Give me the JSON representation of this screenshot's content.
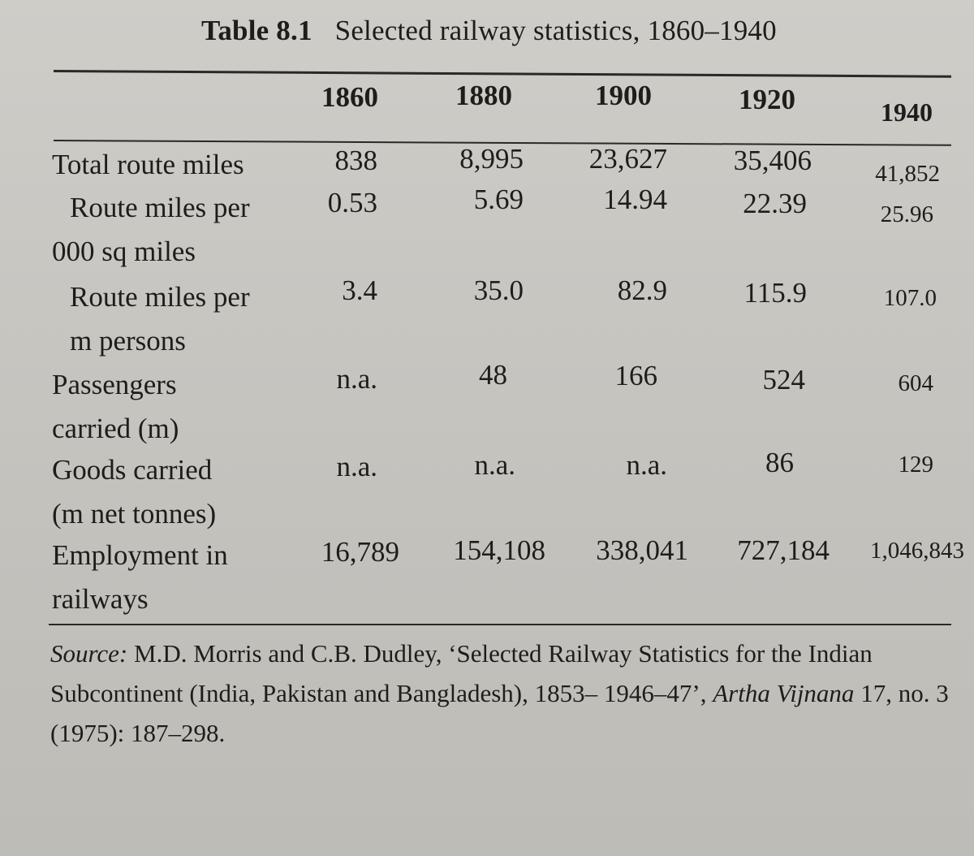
{
  "table": {
    "number": "Table 8.1",
    "title": "Selected railway statistics, 1860–1940",
    "columns": [
      "1860",
      "1880",
      "1900",
      "1920",
      "1940"
    ],
    "rows": [
      {
        "label_lines": [
          "Total route miles"
        ],
        "values": [
          "838",
          "8,995",
          "23,627",
          "35,406",
          "41,852"
        ]
      },
      {
        "label_lines": [
          "Route miles per",
          "000 sq miles"
        ],
        "values": [
          "0.53",
          "5.69",
          "14.94",
          "22.39",
          "25.96"
        ]
      },
      {
        "label_lines": [
          "Route miles per",
          "m persons"
        ],
        "values": [
          "3.4",
          "35.0",
          "82.9",
          "115.9",
          "107.0"
        ]
      },
      {
        "label_lines": [
          "Passengers",
          "carried (m)"
        ],
        "values": [
          "n.a.",
          "48",
          "166",
          "524",
          "604"
        ]
      },
      {
        "label_lines": [
          "Goods carried",
          "(m net tonnes)"
        ],
        "values": [
          "n.a.",
          "n.a.",
          "n.a.",
          "86",
          "129"
        ]
      },
      {
        "label_lines": [
          "Employment in",
          "railways"
        ],
        "values": [
          "16,789",
          "154,108",
          "338,041",
          "727,184",
          "1,046,843"
        ]
      }
    ]
  },
  "source": {
    "label": "Source:",
    "text_before": "M.D. Morris and C.B. Dudley, ‘Selected Railway Statistics for the Indian Subcontinent (India, Pakistan and Bangladesh), 1853– 1946–47’,",
    "journal": "Artha Vijnana",
    "text_after": "17, no. 3 (1975): 187–298."
  }
}
